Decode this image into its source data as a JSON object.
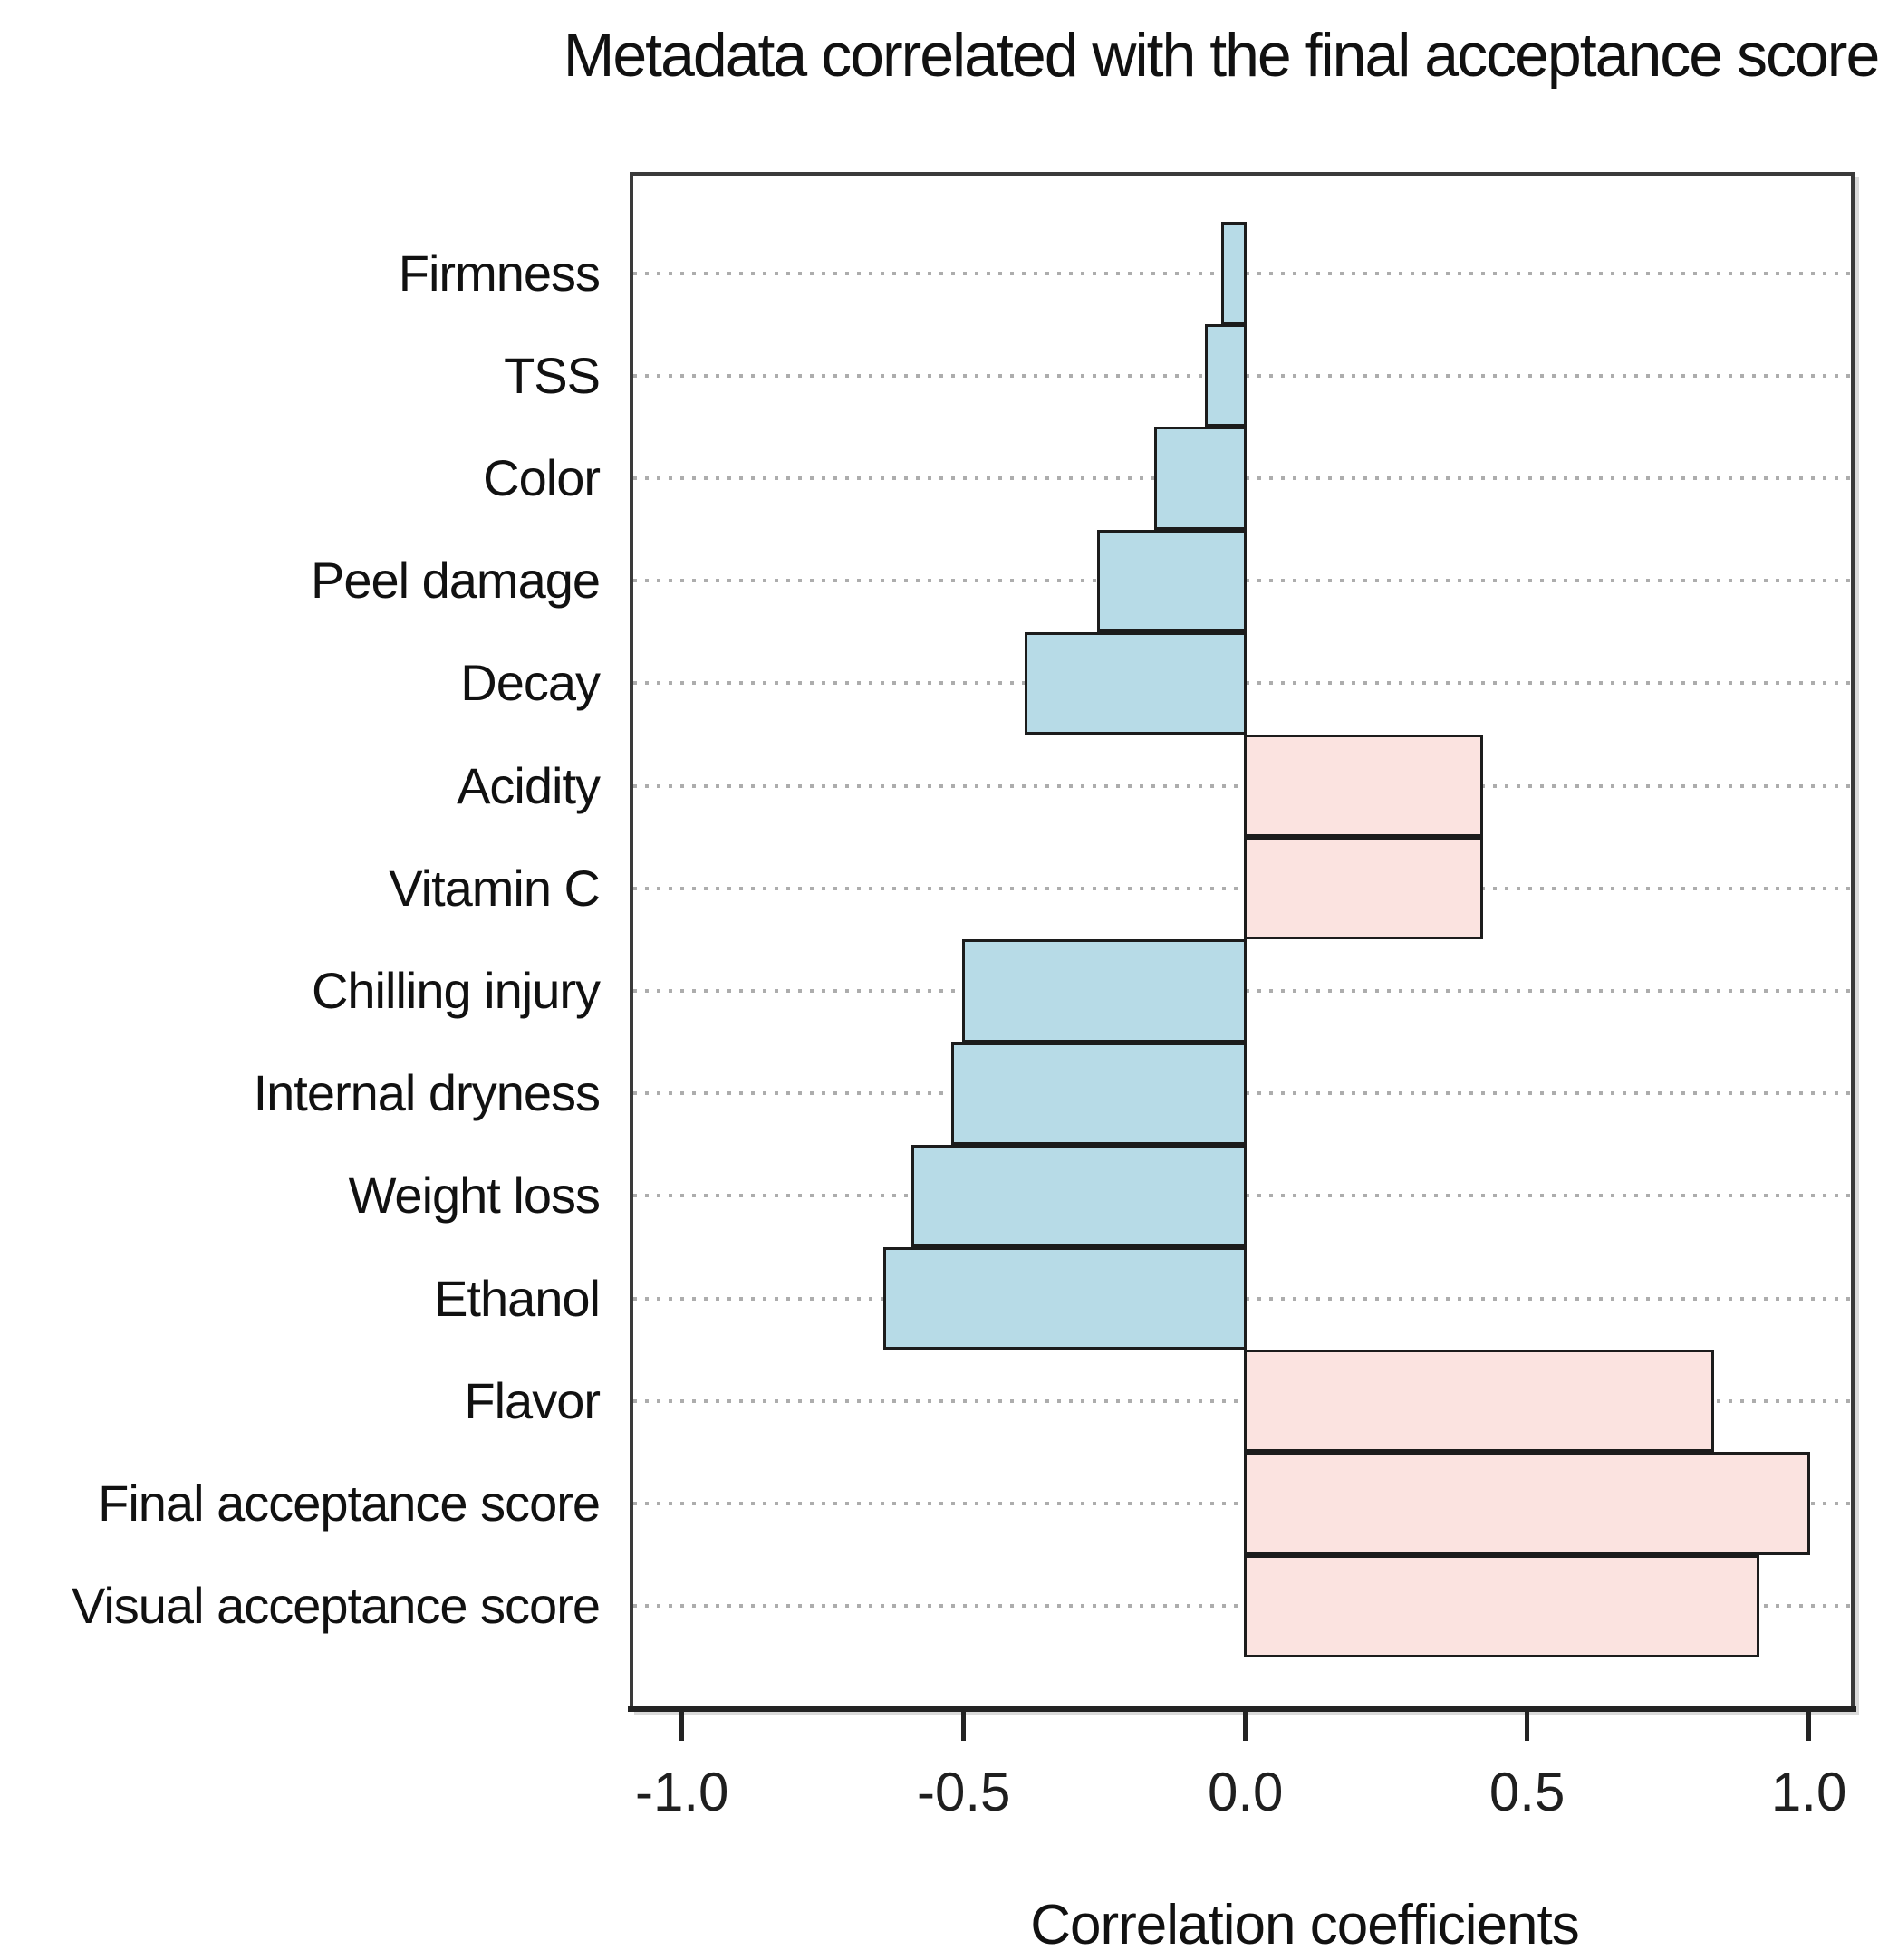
{
  "chart_data": {
    "type": "bar",
    "orientation": "horizontal",
    "title": "Metadata correlated with the final acceptance score",
    "xlabel": "Correlation coefficients",
    "ylabel": "",
    "categories": [
      "Firmness",
      "TSS",
      "Color",
      "Peel damage",
      "Decay",
      "Acidity",
      "Vitamin C",
      "Chilling injury",
      "Internal dryness",
      "Weight loss",
      "Ethanol",
      "Flavor",
      "Final acceptance score",
      "Visual acceptance score"
    ],
    "values": [
      -0.04,
      -0.07,
      -0.16,
      -0.26,
      -0.39,
      0.42,
      0.42,
      -0.5,
      -0.52,
      -0.59,
      -0.64,
      0.83,
      1.0,
      0.91
    ],
    "x_ticks": [
      {
        "value": -1.0,
        "label": "-1.0"
      },
      {
        "value": -0.5,
        "label": "-0.5"
      },
      {
        "value": 0.0,
        "label": "0.0"
      },
      {
        "value": 0.5,
        "label": "0.5"
      },
      {
        "value": 1.0,
        "label": "1.0"
      }
    ],
    "xlim": [
      -1.084,
      1.077
    ],
    "grid": "dotted horizontal line per category, behind bars",
    "legend": "none",
    "colors": {
      "positive_fill": "#fbe3e0",
      "negative_fill": "#b7dbe7",
      "bar_border": "#1c1c1c",
      "grid": "#adadad",
      "box_border": "#3a3a3a",
      "axis": "#232323",
      "text": "#111111"
    }
  }
}
